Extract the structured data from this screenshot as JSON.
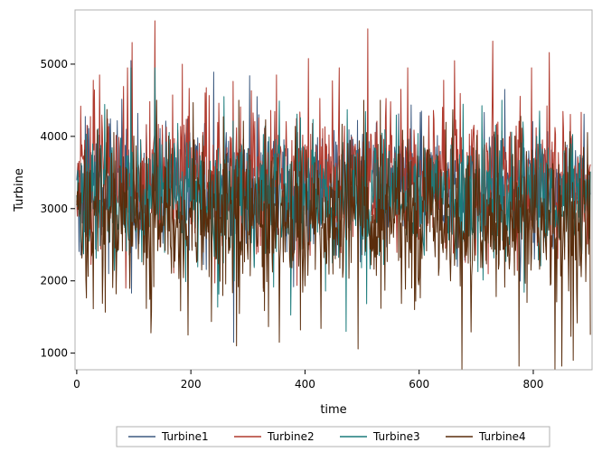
{
  "chart_data": {
    "type": "line",
    "title": "",
    "xlabel": "time",
    "ylabel": "Turbine",
    "xlim": [
      -3,
      903
    ],
    "ylim": [
      770,
      5750
    ],
    "xticks": [
      0,
      200,
      400,
      600,
      800
    ],
    "yticks": [
      1000,
      2000,
      3000,
      4000,
      5000
    ],
    "grid": false,
    "legend_position": "bottom",
    "n_points": 901,
    "series": [
      {
        "name": "Turbine1",
        "color": "#3d5a80",
        "mean": 3300,
        "spread": 420,
        "min": 1150,
        "max": 5050,
        "peaks": [
          [
            95,
            5050
          ],
          [
            275,
            1150
          ],
          [
            750,
            4650
          ],
          [
            137,
            4900
          ]
        ]
      },
      {
        "name": "Turbine2",
        "color": "#b03a2e",
        "mean": 3450,
        "spread": 480,
        "min": 1900,
        "max": 5600,
        "peaks": [
          [
            137,
            5600
          ],
          [
            97,
            5300
          ],
          [
            460,
            4950
          ],
          [
            580,
            4950
          ],
          [
            797,
            4950
          ],
          [
            350,
            4850
          ],
          [
            40,
            4850
          ]
        ]
      },
      {
        "name": "Turbine3",
        "color": "#1a7b7b",
        "mean": 3150,
        "spread": 420,
        "min": 1300,
        "max": 4950,
        "peaks": [
          [
            137,
            4950
          ],
          [
            95,
            4950
          ],
          [
            258,
            4550
          ],
          [
            745,
            4500
          ]
        ]
      },
      {
        "name": "Turbine4",
        "color": "#5a2d0c",
        "mean": 2850,
        "spread": 520,
        "min": 780,
        "max": 4500,
        "peaks": [
          [
            675,
            780
          ],
          [
            775,
            820
          ],
          [
            850,
            820
          ],
          [
            280,
            1100
          ],
          [
            130,
            1280
          ],
          [
            195,
            1250
          ],
          [
            870,
            900
          ],
          [
            355,
            1150
          ]
        ]
      }
    ]
  }
}
